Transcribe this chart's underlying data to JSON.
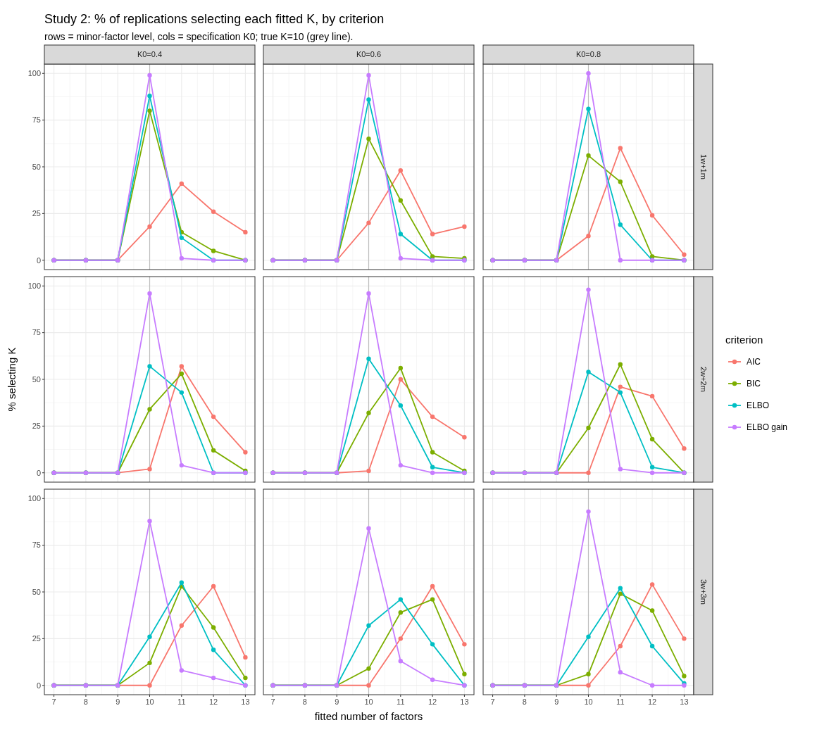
{
  "chart_data": [
    {
      "type": "line",
      "title": "Study 2: % of replications selecting each fitted K, by criterion",
      "subtitle": "rows = minor-factor level, cols = specification K0; true K=10 (grey line).",
      "annotations": [
        "K0=0.4"
      ],
      "x": [
        7,
        8,
        9,
        10,
        11,
        12,
        13
      ],
      "xlim": [
        6.7,
        13.3
      ],
      "xticks": [
        7,
        8,
        9,
        10,
        11,
        12,
        13
      ],
      "ylim": [
        -5,
        105
      ],
      "yticks": [
        0,
        25,
        50,
        75,
        100
      ],
      "grid": true,
      "marker": "circle",
      "tick_labels": "y",
      "ref_lines": [
        {
          "axis": "x",
          "value": 10,
          "color": "#bebebe"
        }
      ],
      "series": [
        {
          "color": "#f8766d",
          "values": [
            0,
            0,
            0,
            18,
            41,
            26,
            15
          ]
        },
        {
          "color": "#7cae00",
          "values": [
            0,
            0,
            0,
            80,
            15,
            5,
            0
          ]
        },
        {
          "color": "#00bfc4",
          "values": [
            0,
            0,
            0,
            88,
            12,
            0,
            0
          ]
        },
        {
          "color": "#c77cff",
          "values": [
            0,
            0,
            0,
            99,
            1,
            0,
            0
          ]
        }
      ]
    },
    {
      "type": "line",
      "annotations": [
        "K0=0.6"
      ],
      "x": [
        7,
        8,
        9,
        10,
        11,
        12,
        13
      ],
      "xlim": [
        6.7,
        13.3
      ],
      "xticks": [
        7,
        8,
        9,
        10,
        11,
        12,
        13
      ],
      "ylim": [
        -5,
        105
      ],
      "yticks": [
        0,
        25,
        50,
        75,
        100
      ],
      "grid": true,
      "marker": "circle",
      "tick_labels": false,
      "ref_lines": [
        {
          "axis": "x",
          "value": 10,
          "color": "#bebebe"
        }
      ],
      "series": [
        {
          "color": "#f8766d",
          "values": [
            0,
            0,
            0,
            20,
            48,
            14,
            18
          ]
        },
        {
          "color": "#7cae00",
          "values": [
            0,
            0,
            0,
            65,
            32,
            2,
            1
          ]
        },
        {
          "color": "#00bfc4",
          "values": [
            0,
            0,
            0,
            86,
            14,
            0,
            0
          ]
        },
        {
          "color": "#c77cff",
          "values": [
            0,
            0,
            0,
            99,
            1,
            0,
            0
          ]
        }
      ]
    },
    {
      "type": "line",
      "annotations": [
        "K0=0.8",
        "1w+1m"
      ],
      "x": [
        7,
        8,
        9,
        10,
        11,
        12,
        13
      ],
      "xlim": [
        6.7,
        13.3
      ],
      "xticks": [
        7,
        8,
        9,
        10,
        11,
        12,
        13
      ],
      "ylim": [
        -5,
        105
      ],
      "yticks": [
        0,
        25,
        50,
        75,
        100
      ],
      "grid": true,
      "marker": "circle",
      "tick_labels": false,
      "ref_lines": [
        {
          "axis": "x",
          "value": 10,
          "color": "#bebebe"
        }
      ],
      "series": [
        {
          "color": "#f8766d",
          "values": [
            0,
            0,
            0,
            13,
            60,
            24,
            3
          ]
        },
        {
          "color": "#7cae00",
          "values": [
            0,
            0,
            0,
            56,
            42,
            2,
            0
          ]
        },
        {
          "color": "#00bfc4",
          "values": [
            0,
            0,
            0,
            81,
            19,
            0,
            0
          ]
        },
        {
          "color": "#c77cff",
          "values": [
            0,
            0,
            0,
            100,
            0,
            0,
            0
          ]
        }
      ]
    },
    {
      "type": "line",
      "ylabel": "% selecting K",
      "x": [
        7,
        8,
        9,
        10,
        11,
        12,
        13
      ],
      "xlim": [
        6.7,
        13.3
      ],
      "xticks": [
        7,
        8,
        9,
        10,
        11,
        12,
        13
      ],
      "ylim": [
        -5,
        105
      ],
      "yticks": [
        0,
        25,
        50,
        75,
        100
      ],
      "grid": true,
      "marker": "circle",
      "tick_labels": "y",
      "ref_lines": [
        {
          "axis": "x",
          "value": 10,
          "color": "#bebebe"
        }
      ],
      "series": [
        {
          "color": "#f8766d",
          "values": [
            0,
            0,
            0,
            2,
            57,
            30,
            11
          ]
        },
        {
          "color": "#7cae00",
          "values": [
            0,
            0,
            0,
            34,
            53,
            12,
            1
          ]
        },
        {
          "color": "#00bfc4",
          "values": [
            0,
            0,
            0,
            57,
            43,
            0,
            0
          ]
        },
        {
          "color": "#c77cff",
          "values": [
            0,
            0,
            0,
            96,
            4,
            0,
            0
          ]
        }
      ]
    },
    {
      "type": "line",
      "x": [
        7,
        8,
        9,
        10,
        11,
        12,
        13
      ],
      "xlim": [
        6.7,
        13.3
      ],
      "xticks": [
        7,
        8,
        9,
        10,
        11,
        12,
        13
      ],
      "ylim": [
        -5,
        105
      ],
      "yticks": [
        0,
        25,
        50,
        75,
        100
      ],
      "grid": true,
      "marker": "circle",
      "tick_labels": false,
      "ref_lines": [
        {
          "axis": "x",
          "value": 10,
          "color": "#bebebe"
        }
      ],
      "series": [
        {
          "color": "#f8766d",
          "values": [
            0,
            0,
            0,
            1,
            50,
            30,
            19
          ]
        },
        {
          "color": "#7cae00",
          "values": [
            0,
            0,
            0,
            32,
            56,
            11,
            1
          ]
        },
        {
          "color": "#00bfc4",
          "values": [
            0,
            0,
            0,
            61,
            36,
            3,
            0
          ]
        },
        {
          "color": "#c77cff",
          "values": [
            0,
            0,
            0,
            96,
            4,
            0,
            0
          ]
        }
      ]
    },
    {
      "type": "line",
      "annotations": [
        "2w+2m"
      ],
      "legend": "right",
      "legend_title": "criterion",
      "x": [
        7,
        8,
        9,
        10,
        11,
        12,
        13
      ],
      "xlim": [
        6.7,
        13.3
      ],
      "xticks": [
        7,
        8,
        9,
        10,
        11,
        12,
        13
      ],
      "ylim": [
        -5,
        105
      ],
      "yticks": [
        0,
        25,
        50,
        75,
        100
      ],
      "grid": true,
      "marker": "circle",
      "tick_labels": false,
      "ref_lines": [
        {
          "axis": "x",
          "value": 10,
          "color": "#bebebe"
        }
      ],
      "series": [
        {
          "name": "AIC",
          "color": "#f8766d",
          "values": [
            0,
            0,
            0,
            0,
            46,
            41,
            13
          ]
        },
        {
          "name": "BIC",
          "color": "#7cae00",
          "values": [
            0,
            0,
            0,
            24,
            58,
            18,
            0
          ]
        },
        {
          "name": "ELBO",
          "color": "#00bfc4",
          "values": [
            0,
            0,
            0,
            54,
            43,
            3,
            0
          ]
        },
        {
          "name": "ELBO gain",
          "color": "#c77cff",
          "values": [
            0,
            0,
            0,
            98,
            2,
            0,
            0
          ]
        }
      ]
    },
    {
      "type": "line",
      "x": [
        7,
        8,
        9,
        10,
        11,
        12,
        13
      ],
      "xlim": [
        6.7,
        13.3
      ],
      "xticks": [
        7,
        8,
        9,
        10,
        11,
        12,
        13
      ],
      "ylim": [
        -5,
        105
      ],
      "yticks": [
        0,
        25,
        50,
        75,
        100
      ],
      "grid": true,
      "marker": "circle",
      "ref_lines": [
        {
          "axis": "x",
          "value": 10,
          "color": "#bebebe"
        }
      ],
      "series": [
        {
          "color": "#f8766d",
          "values": [
            0,
            0,
            0,
            0,
            32,
            53,
            15
          ]
        },
        {
          "color": "#7cae00",
          "values": [
            0,
            0,
            0,
            12,
            53,
            31,
            4
          ]
        },
        {
          "color": "#00bfc4",
          "values": [
            0,
            0,
            0,
            26,
            55,
            19,
            0
          ]
        },
        {
          "color": "#c77cff",
          "values": [
            0,
            0,
            0,
            88,
            8,
            4,
            0
          ]
        }
      ]
    },
    {
      "type": "line",
      "xlabel": "fitted number of factors",
      "x": [
        7,
        8,
        9,
        10,
        11,
        12,
        13
      ],
      "xlim": [
        6.7,
        13.3
      ],
      "xticks": [
        7,
        8,
        9,
        10,
        11,
        12,
        13
      ],
      "ylim": [
        -5,
        105
      ],
      "yticks": [
        0,
        25,
        50,
        75,
        100
      ],
      "grid": true,
      "marker": "circle",
      "tick_labels": "x",
      "ref_lines": [
        {
          "axis": "x",
          "value": 10,
          "color": "#bebebe"
        }
      ],
      "series": [
        {
          "color": "#f8766d",
          "values": [
            0,
            0,
            0,
            0,
            25,
            53,
            22
          ]
        },
        {
          "color": "#7cae00",
          "values": [
            0,
            0,
            0,
            9,
            39,
            46,
            6
          ]
        },
        {
          "color": "#00bfc4",
          "values": [
            0,
            0,
            0,
            32,
            46,
            22,
            0
          ]
        },
        {
          "color": "#c77cff",
          "values": [
            0,
            0,
            0,
            84,
            13,
            3,
            0
          ]
        }
      ]
    },
    {
      "type": "line",
      "annotations": [
        "3w+3m"
      ],
      "x": [
        7,
        8,
        9,
        10,
        11,
        12,
        13
      ],
      "xlim": [
        6.7,
        13.3
      ],
      "xticks": [
        7,
        8,
        9,
        10,
        11,
        12,
        13
      ],
      "ylim": [
        -5,
        105
      ],
      "yticks": [
        0,
        25,
        50,
        75,
        100
      ],
      "grid": true,
      "marker": "circle",
      "tick_labels": "x",
      "ref_lines": [
        {
          "axis": "x",
          "value": 10,
          "color": "#bebebe"
        }
      ],
      "series": [
        {
          "color": "#f8766d",
          "values": [
            0,
            0,
            0,
            0,
            21,
            54,
            25
          ]
        },
        {
          "color": "#7cae00",
          "values": [
            0,
            0,
            0,
            6,
            49,
            40,
            5
          ]
        },
        {
          "color": "#00bfc4",
          "values": [
            0,
            0,
            0,
            26,
            52,
            21,
            1
          ]
        },
        {
          "color": "#c77cff",
          "values": [
            0,
            0,
            0,
            93,
            7,
            0,
            0
          ]
        }
      ]
    }
  ]
}
